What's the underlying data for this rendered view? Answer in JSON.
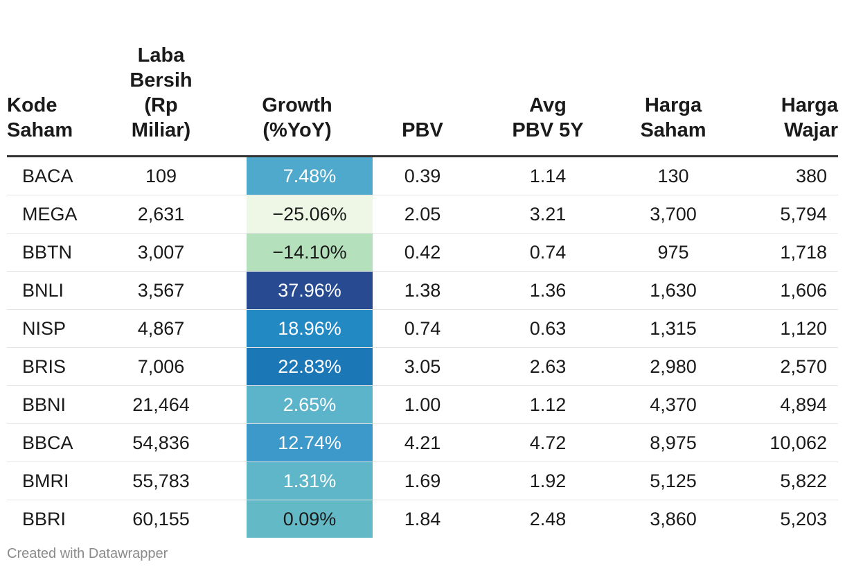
{
  "chart_data": {
    "type": "table",
    "columns": [
      [
        "Kode",
        "Saham"
      ],
      [
        "Laba",
        "Bersih",
        "(Rp",
        "Miliar)"
      ],
      [
        "Growth",
        "(%YoY)"
      ],
      [
        "PBV"
      ],
      [
        "Avg",
        "PBV 5Y"
      ],
      [
        "Harga",
        "Saham"
      ],
      [
        "Harga",
        "Wajar"
      ]
    ],
    "rows": [
      {
        "kode": "BACA",
        "laba": "109",
        "growth": "7.48%",
        "growth_value": 7.48,
        "pbv": "0.39",
        "avg_pbv": "1.14",
        "harga": "130",
        "wajar": "380",
        "bg": "#4fa9cd",
        "fg": "#ffffff"
      },
      {
        "kode": "MEGA",
        "laba": "2,631",
        "growth": "−25.06%",
        "growth_value": -25.06,
        "pbv": "2.05",
        "avg_pbv": "3.21",
        "harga": "3,700",
        "wajar": "5,794",
        "bg": "#eef7e6",
        "fg": "#1a1a1a"
      },
      {
        "kode": "BBTN",
        "laba": "3,007",
        "growth": "−14.10%",
        "growth_value": -14.1,
        "pbv": "0.42",
        "avg_pbv": "0.74",
        "harga": "975",
        "wajar": "1,718",
        "bg": "#b4e0bc",
        "fg": "#1a1a1a"
      },
      {
        "kode": "BNLI",
        "laba": "3,567",
        "growth": "37.96%",
        "growth_value": 37.96,
        "pbv": "1.38",
        "avg_pbv": "1.36",
        "harga": "1,630",
        "wajar": "1,606",
        "bg": "#274a90",
        "fg": "#ffffff"
      },
      {
        "kode": "NISP",
        "laba": "4,867",
        "growth": "18.96%",
        "growth_value": 18.96,
        "pbv": "0.74",
        "avg_pbv": "0.63",
        "harga": "1,315",
        "wajar": "1,120",
        "bg": "#2389c3",
        "fg": "#ffffff"
      },
      {
        "kode": "BRIS",
        "laba": "7,006",
        "growth": "22.83%",
        "growth_value": 22.83,
        "pbv": "3.05",
        "avg_pbv": "2.63",
        "harga": "2,980",
        "wajar": "2,570",
        "bg": "#1c77b6",
        "fg": "#ffffff"
      },
      {
        "kode": "BBNI",
        "laba": "21,464",
        "growth": "2.65%",
        "growth_value": 2.65,
        "pbv": "1.00",
        "avg_pbv": "1.12",
        "harga": "4,370",
        "wajar": "4,894",
        "bg": "#5cb4cb",
        "fg": "#ffffff"
      },
      {
        "kode": "BBCA",
        "laba": "54,836",
        "growth": "12.74%",
        "growth_value": 12.74,
        "pbv": "4.21",
        "avg_pbv": "4.72",
        "harga": "8,975",
        "wajar": "10,062",
        "bg": "#3c99c9",
        "fg": "#ffffff"
      },
      {
        "kode": "BMRI",
        "laba": "55,783",
        "growth": "1.31%",
        "growth_value": 1.31,
        "pbv": "1.69",
        "avg_pbv": "1.92",
        "harga": "5,125",
        "wajar": "5,822",
        "bg": "#5fb6c8",
        "fg": "#ffffff"
      },
      {
        "kode": "BBRI",
        "laba": "60,155",
        "growth": "0.09%",
        "growth_value": 0.09,
        "pbv": "1.84",
        "avg_pbv": "2.48",
        "harga": "3,860",
        "wajar": "5,203",
        "bg": "#64b9c6",
        "fg": "#1a1a1a"
      }
    ]
  },
  "footer": {
    "credit": "Created with Datawrapper"
  }
}
